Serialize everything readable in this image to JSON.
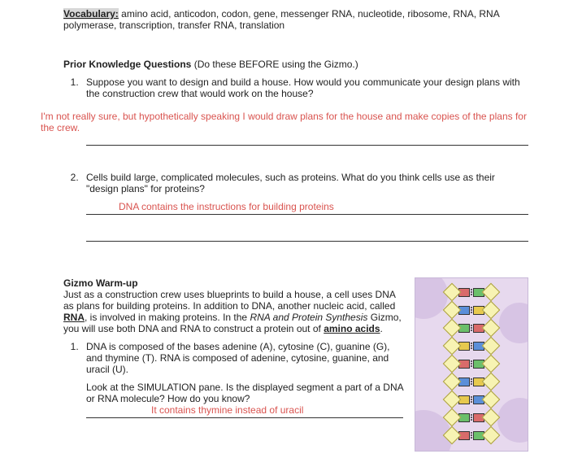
{
  "vocab": {
    "label": "Vocabulary:",
    "text": " amino acid, anticodon, codon, gene, messenger RNA, nucleotide, ribosome, RNA, RNA polymerase, transcription, transfer RNA, translation"
  },
  "pkq": {
    "title": "Prior Knowledge Questions",
    "paren": " (Do these BEFORE using the Gizmo.)",
    "q1": "Suppose you want to design and build a house. How would you communicate your design plans with the construction crew that would work on the house?",
    "a1": "I'm not really sure, but hypothetically speaking I would draw plans for the house and make copies of the plans for the crew.",
    "q2": "Cells build large, complicated molecules, such as proteins. What do you think cells use as their \"design plans\" for proteins?",
    "a2": "DNA contains the instructions for building proteins"
  },
  "warmup": {
    "title": "Gizmo Warm-up",
    "p_before_rna": "Just as a construction crew uses blueprints to build a house, a cell uses DNA as plans for building proteins. In addition to DNA, another nucleic acid, called ",
    "rna": "RNA",
    "p_after_rna": ", is involved in making proteins. In the ",
    "gizmo_name": "RNA and Protein Synthesis",
    "p_after_gizmo": " Gizmo, you will use both DNA and RNA to construct a protein out of ",
    "aa": "amino acids",
    "period": ".",
    "q1": "DNA is composed of the bases adenine (A), cytosine (C), guanine (G), and thymine (T). RNA is composed of adenine, cytosine, guanine, and uracil (U).",
    "q1b": "Look at the SIMULATION pane. Is the displayed segment a part of a DNA or RNA molecule? How do you know?",
    "a1": "It contains thymine instead of uracil"
  },
  "dna_rungs": [
    [
      "#d96b6b",
      "#6bbf6b"
    ],
    [
      "#5b8fd9",
      "#e7c94e"
    ],
    [
      "#6bbf6b",
      "#d96b6b"
    ],
    [
      "#e7c94e",
      "#5b8fd9"
    ],
    [
      "#d96b6b",
      "#6bbf6b"
    ],
    [
      "#5b8fd9",
      "#e7c94e"
    ],
    [
      "#e7c94e",
      "#5b8fd9"
    ],
    [
      "#6bbf6b",
      "#d96b6b"
    ],
    [
      "#d96b6b",
      "#6bbf6b"
    ]
  ]
}
